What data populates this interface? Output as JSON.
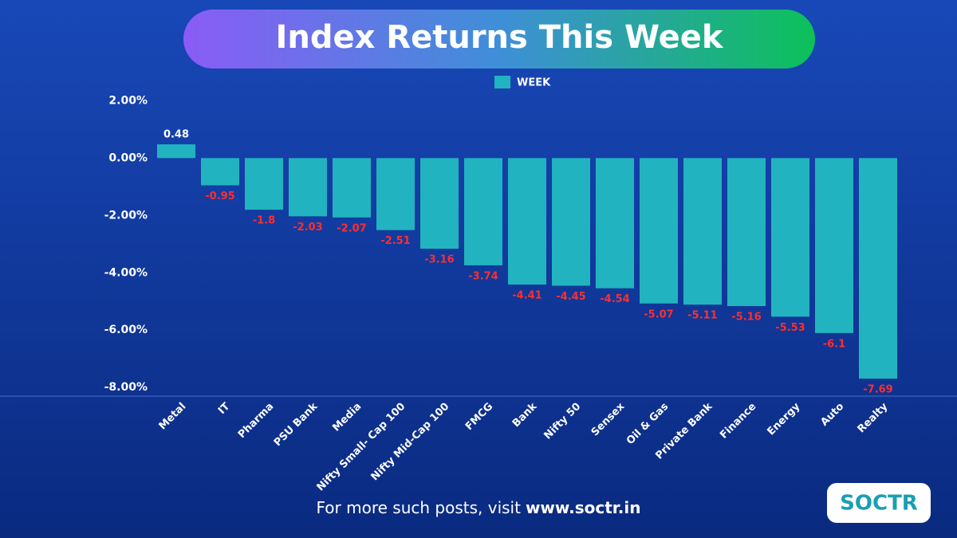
{
  "chart_data": {
    "type": "bar",
    "title": "Index  Returns This Week",
    "categories": [
      "Metal",
      "IT",
      "Pharma",
      "PSU Bank",
      "Media",
      "Nifty Small- Cap 100",
      "Nifty Mid-Cap 100",
      "FMCG",
      "Bank",
      "Nifty 50",
      "Sensex",
      "Oil & Gas",
      "Private Bank",
      "Finance",
      "Energy",
      "Auto",
      "Realty"
    ],
    "series": [
      {
        "name": "WEEK",
        "color": "#22b3c0",
        "values": [
          0.48,
          -0.95,
          -1.8,
          -2.03,
          -2.07,
          -2.51,
          -3.16,
          -3.74,
          -4.41,
          -4.45,
          -4.54,
          -5.07,
          -5.11,
          -5.16,
          -5.53,
          -6.1,
          -7.69
        ]
      }
    ],
    "ylim": [
      -8.3,
      2.9
    ],
    "yticks": [
      {
        "value": 2,
        "label": "2.00%"
      },
      {
        "value": 0,
        "label": "0.00%"
      },
      {
        "value": -2,
        "label": "-2.00%"
      },
      {
        "value": -4,
        "label": "-4.00%"
      },
      {
        "value": -6,
        "label": "-6.00%"
      },
      {
        "value": -8,
        "label": "-8.00%"
      }
    ],
    "grid": false,
    "label_color_positive": "#ffffff",
    "label_color_negative": "#ff2e2e"
  },
  "footer": {
    "text": "For more such posts, visit",
    "link": "www.soctr.in"
  },
  "logo": "SOCTR"
}
